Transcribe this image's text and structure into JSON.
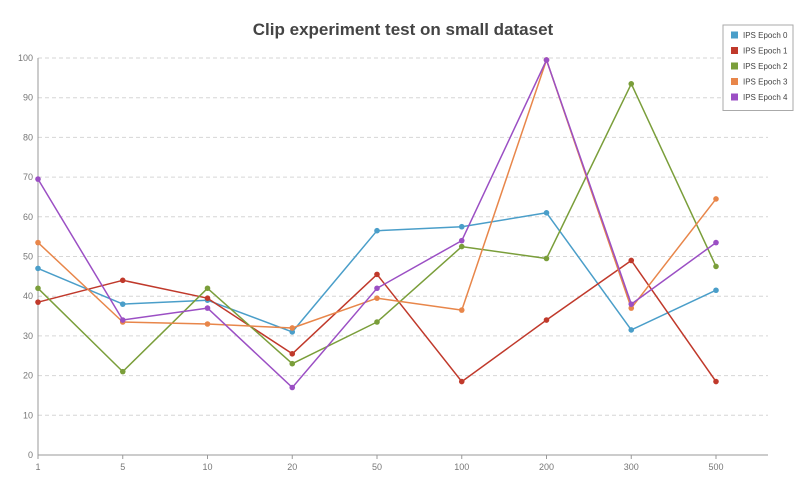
{
  "chart_data": {
    "type": "line",
    "title": "Clip experiment test on small dataset",
    "xlabel": "",
    "ylabel": "",
    "categories": [
      "1",
      "5",
      "10",
      "20",
      "50",
      "100",
      "200",
      "300",
      "500"
    ],
    "ylim": [
      0,
      100
    ],
    "yticks": [
      0,
      10,
      20,
      30,
      40,
      50,
      60,
      70,
      80,
      90,
      100
    ],
    "grid": true,
    "legend_position": "top-right",
    "series": [
      {
        "name": "IPS Epoch 0",
        "color": "#4a9ec9",
        "values": [
          47,
          38,
          39,
          31,
          56.5,
          57.5,
          61,
          31.5,
          41.5
        ]
      },
      {
        "name": "IPS Epoch 1",
        "color": "#c0392b",
        "values": [
          38.5,
          44,
          39.5,
          25.5,
          45.5,
          18.5,
          34,
          49,
          18.5
        ]
      },
      {
        "name": "IPS Epoch 2",
        "color": "#7a9e3a",
        "values": [
          42,
          21,
          42,
          23,
          33.5,
          52.5,
          49.5,
          93.5,
          47.5
        ]
      },
      {
        "name": "IPS Epoch 3",
        "color": "#e8864a",
        "values": [
          53.5,
          33.5,
          33,
          32,
          39.5,
          36.5,
          99.5,
          37,
          64.5
        ]
      },
      {
        "name": "IPS Epoch 4",
        "color": "#9b4fc4",
        "values": [
          69.5,
          34,
          37,
          17,
          42,
          54,
          99.5,
          38,
          53.5
        ]
      }
    ]
  }
}
